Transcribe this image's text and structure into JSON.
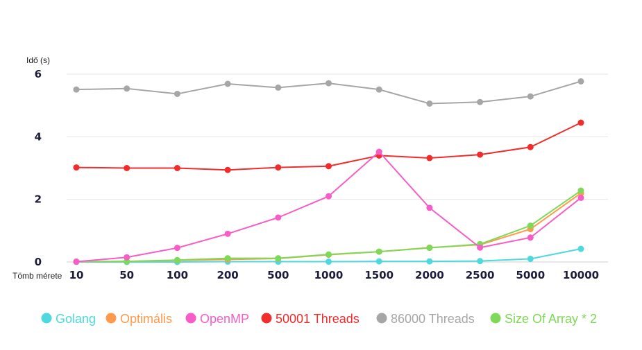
{
  "chart_data": {
    "type": "line",
    "ylabel": "Idő (s)",
    "xlabel": "Tömb mérete",
    "ylim": [
      0,
      6
    ],
    "yticks": [
      0,
      2,
      4,
      6
    ],
    "grid": true,
    "legend_position": "bottom",
    "categories": [
      "10",
      "50",
      "100",
      "200",
      "500",
      "1000",
      "1500",
      "2000",
      "2500",
      "5000",
      "10000"
    ],
    "series": [
      {
        "name": "Golang",
        "color": "#4dd9de",
        "values": [
          0.0,
          0.0,
          0.0,
          0.01,
          0.01,
          0.01,
          0.02,
          0.02,
          0.03,
          0.1,
          0.42
        ]
      },
      {
        "name": "Optimális",
        "color": "#ff9a4d",
        "values": [
          0.01,
          0.02,
          0.05,
          0.08,
          0.11,
          0.23,
          0.33,
          0.46,
          0.55,
          1.05,
          2.2
        ]
      },
      {
        "name": "OpenMP",
        "color": "#f75cc7",
        "values": [
          0.01,
          0.15,
          0.45,
          0.9,
          1.42,
          2.1,
          3.52,
          1.73,
          0.46,
          0.78,
          2.05
        ]
      },
      {
        "name": "50001 Threads",
        "color": "#f02c2c",
        "values": [
          3.02,
          3.0,
          3.0,
          2.94,
          3.02,
          3.06,
          3.4,
          3.32,
          3.43,
          3.67,
          4.45
        ]
      },
      {
        "name": "86000 Threads",
        "color": "#a6a6a6",
        "values": [
          5.51,
          5.54,
          5.37,
          5.69,
          5.57,
          5.71,
          5.51,
          5.06,
          5.11,
          5.29,
          5.77
        ]
      },
      {
        "name": "Size Of Array * 2",
        "color": "#7dd957",
        "values": [
          0.01,
          0.02,
          0.06,
          0.12,
          0.12,
          0.24,
          0.33,
          0.45,
          0.57,
          1.16,
          2.28
        ]
      }
    ]
  }
}
